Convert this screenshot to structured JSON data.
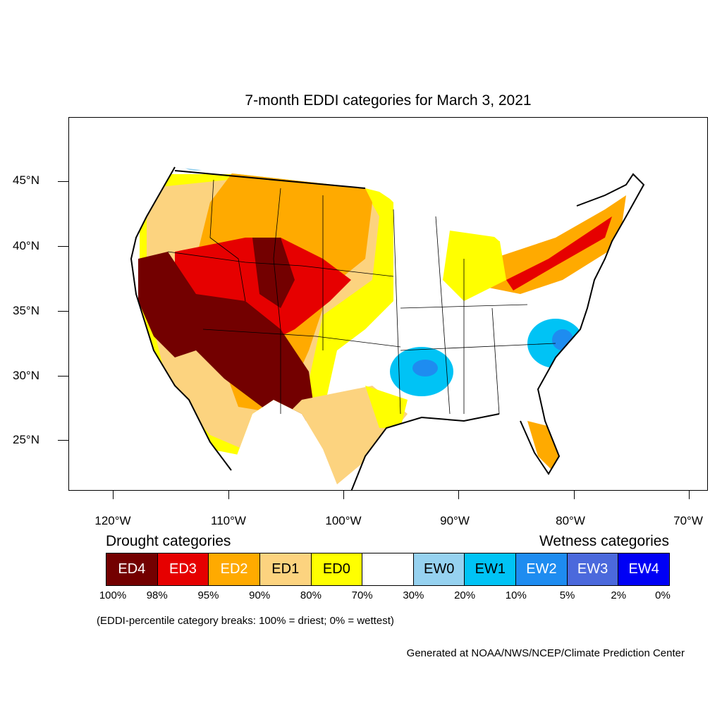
{
  "title": "7-month EDDI categories for March 3, 2021",
  "axes": {
    "lat_labels": [
      "45°N",
      "40°N",
      "35°N",
      "30°N",
      "25°N"
    ],
    "lon_labels": [
      "120°W",
      "110°W",
      "100°W",
      "90°W",
      "80°W",
      "70°W"
    ]
  },
  "legend": {
    "drought_heading": "Drought categories",
    "wetness_heading": "Wetness categories",
    "categories": [
      {
        "label": "ED4",
        "color": "#730000",
        "text_color": "#ffffff"
      },
      {
        "label": "ED3",
        "color": "#e60000",
        "text_color": "#ffffff"
      },
      {
        "label": "ED2",
        "color": "#ffaa00",
        "text_color": "#ffffff"
      },
      {
        "label": "ED1",
        "color": "#fcd37f",
        "text_color": "#000000"
      },
      {
        "label": "ED0",
        "color": "#ffff00",
        "text_color": "#000000"
      },
      {
        "label": "",
        "color": "#ffffff",
        "text_color": "#000000"
      },
      {
        "label": "EW0",
        "color": "#96d2f0",
        "text_color": "#000000"
      },
      {
        "label": "EW1",
        "color": "#00c3f5",
        "text_color": "#000000"
      },
      {
        "label": "EW2",
        "color": "#1e8cf0",
        "text_color": "#ffffff"
      },
      {
        "label": "EW3",
        "color": "#4b69dc",
        "text_color": "#ffffff"
      },
      {
        "label": "EW4",
        "color": "#0000f5",
        "text_color": "#ffffff"
      }
    ],
    "breaks": [
      "100%",
      "98%",
      "95%",
      "90%",
      "80%",
      "70%",
      "30%",
      "20%",
      "10%",
      "5%",
      "2%",
      "0%"
    ]
  },
  "note": "(EDDI-percentile category breaks: 100% = driest; 0% = wettest)",
  "credit": "Generated at NOAA/NWS/NCEP/Climate Prediction Center"
}
